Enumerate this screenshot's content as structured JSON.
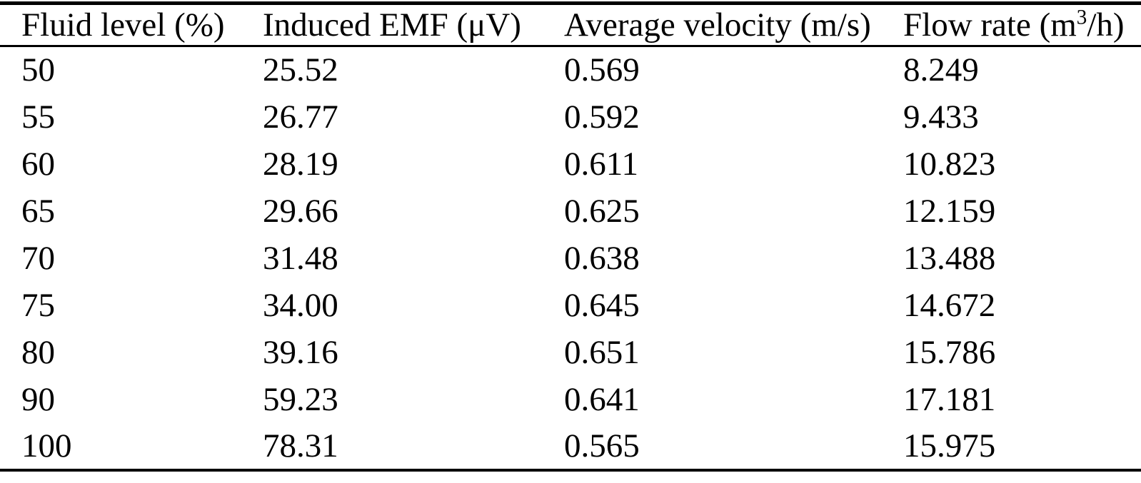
{
  "colors": {
    "background": "#ffffff",
    "text": "#000000",
    "rule": "#000000"
  },
  "table": {
    "headers": [
      "Fluid level (%)",
      "Induced EMF (μV)",
      "Average velocity (m/s)"
    ],
    "header_flow_rate": {
      "prefix": "Flow rate (m",
      "sup": "3",
      "suffix": "/h)"
    },
    "rows": [
      [
        "50",
        "25.52",
        "0.569",
        "8.249"
      ],
      [
        "55",
        "26.77",
        "0.592",
        "9.433"
      ],
      [
        "60",
        "28.19",
        "0.611",
        "10.823"
      ],
      [
        "65",
        "29.66",
        "0.625",
        "12.159"
      ],
      [
        "70",
        "31.48",
        "0.638",
        "13.488"
      ],
      [
        "75",
        "34.00",
        "0.645",
        "14.672"
      ],
      [
        "80",
        "39.16",
        "0.651",
        "15.786"
      ],
      [
        "90",
        "59.23",
        "0.641",
        "17.181"
      ],
      [
        "100",
        "78.31",
        "0.565",
        "15.975"
      ]
    ]
  },
  "chart_data": {
    "type": "table",
    "title": "",
    "columns": [
      "Fluid level (%)",
      "Induced EMF (μV)",
      "Average velocity (m/s)",
      "Flow rate (m³/h)"
    ],
    "fluid_level_pct": [
      50,
      55,
      60,
      65,
      70,
      75,
      80,
      90,
      100
    ],
    "induced_emf_uV": [
      25.52,
      26.77,
      28.19,
      29.66,
      31.48,
      34.0,
      39.16,
      59.23,
      78.31
    ],
    "average_velocity_m_s": [
      0.569,
      0.592,
      0.611,
      0.625,
      0.638,
      0.645,
      0.651,
      0.641,
      0.565
    ],
    "flow_rate_m3_h": [
      8.249,
      9.433,
      10.823,
      12.159,
      13.488,
      14.672,
      15.786,
      17.181,
      15.975
    ]
  }
}
